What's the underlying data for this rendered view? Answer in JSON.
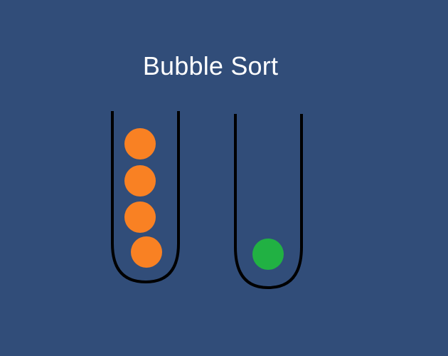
{
  "title": "Bubble Sort",
  "colors": {
    "background": "#314d79",
    "orange_ball": "#f98123",
    "green_ball": "#21b143",
    "tube_outline": "#000000",
    "title_text": "#ffffff"
  },
  "tubes": [
    {
      "name": "left-tube",
      "balls": [
        "orange",
        "orange",
        "orange",
        "orange"
      ]
    },
    {
      "name": "right-tube",
      "balls": [
        "green"
      ]
    }
  ]
}
